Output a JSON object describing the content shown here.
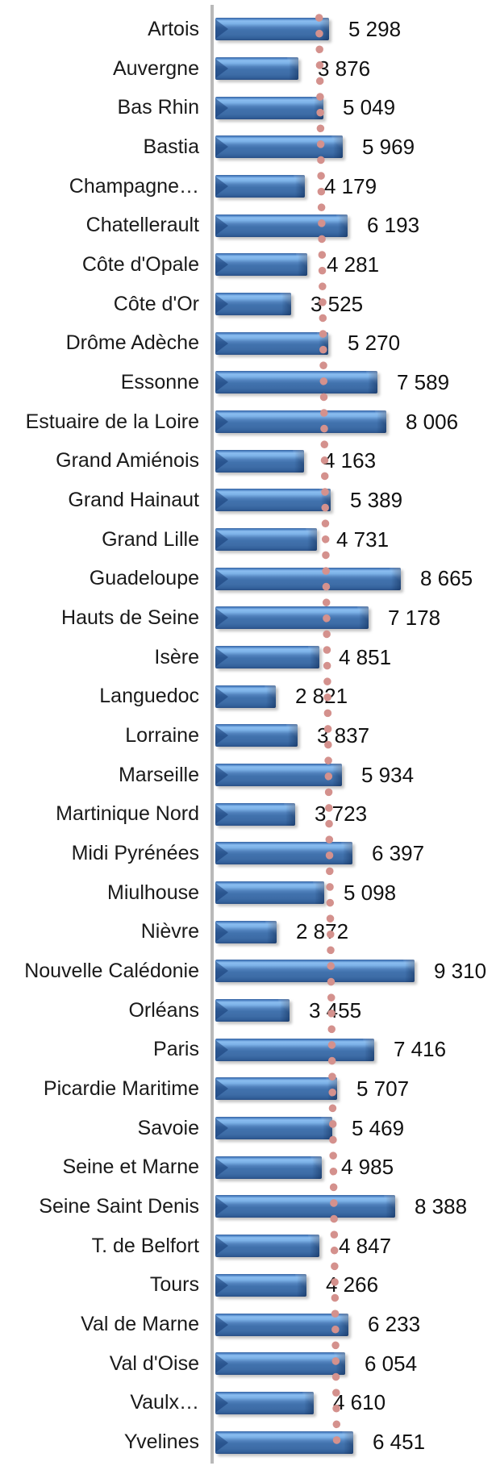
{
  "chart_data": {
    "type": "bar",
    "orientation": "horizontal",
    "title": "",
    "xlabel": "",
    "ylabel": "",
    "legend": "none",
    "grid": "off",
    "axis_color": "#b9b9b9",
    "bar_color_main": "#4377b4",
    "bar_color_highlight": "#8abdf0",
    "bar_color_edge": "#2a5086",
    "value_range_estimate": [
      0,
      9310
    ],
    "categories": [
      "Artois",
      "Auvergne",
      "Bas Rhin",
      "Bastia",
      "Champagne…",
      "Chatellerault",
      "Côte d'Opale",
      "Côte d'Or",
      "Drôme Adèche",
      "Essonne",
      "Estuaire de la Loire",
      "Grand Amiénois",
      "Grand Hainaut",
      "Grand Lille",
      "Guadeloupe",
      "Hauts de Seine",
      "Isère",
      "Languedoc",
      "Lorraine",
      "Marseille",
      "Martinique Nord",
      "Midi Pyrénées",
      "Miulhouse",
      "Nièvre",
      "Nouvelle Calédonie",
      "Orléans",
      "Paris",
      "Picardie Maritime",
      "Savoie",
      "Seine et Marne",
      "Seine Saint Denis",
      "T. de Belfort",
      "Tours",
      "Val de Marne",
      "Val d'Oise",
      "Vaulx…",
      "Yvelines"
    ],
    "values": [
      5298,
      3876,
      5049,
      5969,
      4179,
      6193,
      4281,
      3525,
      5270,
      7589,
      8006,
      4163,
      5389,
      4731,
      8665,
      7178,
      4851,
      2821,
      3837,
      5934,
      3723,
      6397,
      5098,
      2872,
      9310,
      3455,
      7416,
      5707,
      5469,
      4985,
      8388,
      4847,
      4266,
      6233,
      6054,
      4610,
      6451
    ],
    "value_labels": [
      "5 298",
      "3 876",
      "5 049",
      "5 969",
      "4 179",
      "6 193",
      "4 281",
      "3 525",
      "5 270",
      "7 589",
      "8 006",
      "4 163",
      "5 389",
      "4 731",
      "8 665",
      "7 178",
      "4 851",
      "2 821",
      "3 837",
      "5 934",
      "3 723",
      "6 397",
      "5 098",
      "2 872",
      "9 310",
      "3 455",
      "7 416",
      "5 707",
      "5 469",
      "4 985",
      "8 388",
      "4 847",
      "4 266",
      "6 233",
      "6 054",
      "4 610",
      "6 451"
    ],
    "trendline": {
      "style": "dotted",
      "shape": "near-vertical line of round dots",
      "color": "#d4918d",
      "value_at_top": 4700,
      "value_at_bottom": 5530
    }
  }
}
